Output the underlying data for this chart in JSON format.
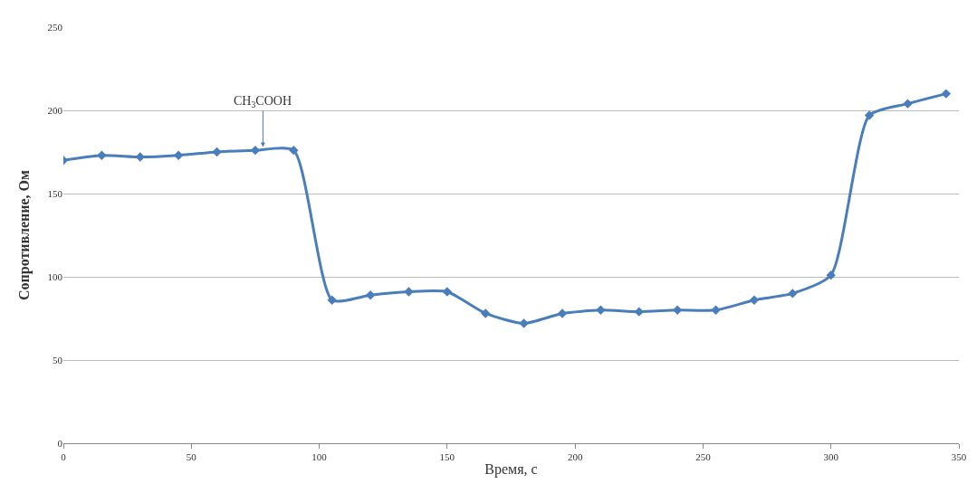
{
  "chart_data": {
    "type": "line",
    "xlabel": "Время, с",
    "ylabel": "Сопротивление, Ом",
    "x": [
      0,
      15,
      30,
      45,
      60,
      75,
      90,
      105,
      120,
      135,
      150,
      165,
      180,
      195,
      210,
      225,
      240,
      255,
      270,
      285,
      300,
      315,
      330,
      345
    ],
    "series": [
      {
        "color": "#4a7ebb",
        "values": [
          170,
          173,
          172,
          173,
          175,
          176,
          176,
          86,
          89,
          91,
          91,
          78,
          72,
          78,
          80,
          79,
          80,
          80,
          86,
          90,
          101,
          197,
          204,
          210
        ]
      }
    ],
    "xlim": [
      0,
      350
    ],
    "xticks": [
      0,
      50,
      100,
      150,
      200,
      250,
      300,
      350
    ],
    "ylim": [
      0,
      250
    ],
    "yticks": [
      0,
      50,
      100,
      150,
      200,
      250
    ],
    "grid": "y",
    "marker": "diamond",
    "line_style": "solid",
    "legend": false,
    "annotations": [
      {
        "text": "CH$_{3}$COOH",
        "x": 78,
        "y": 178
      }
    ]
  }
}
